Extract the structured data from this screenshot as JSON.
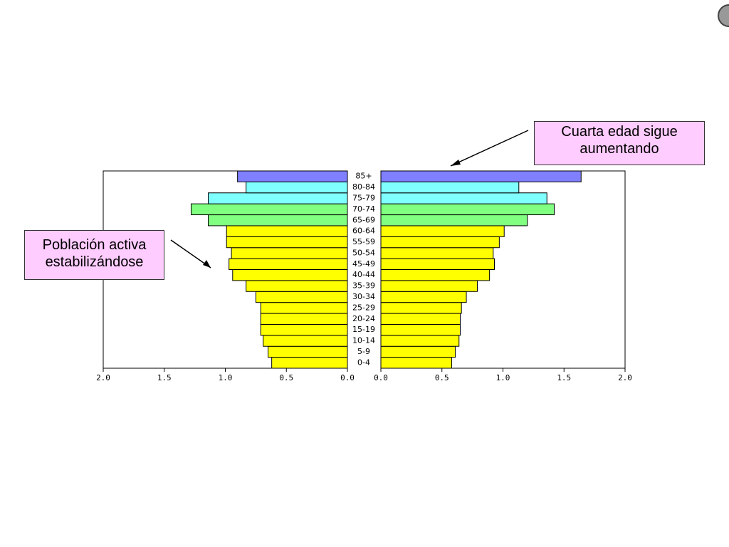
{
  "chart_data": {
    "type": "pyramid",
    "categories": [
      "0-4",
      "5-9",
      "10-14",
      "15-19",
      "20-24",
      "25-29",
      "30-34",
      "35-39",
      "40-44",
      "45-49",
      "50-54",
      "55-59",
      "60-64",
      "65-69",
      "70-74",
      "75-79",
      "80-84",
      "85+"
    ],
    "colors": [
      "#ffff00",
      "#ffff00",
      "#ffff00",
      "#ffff00",
      "#ffff00",
      "#ffff00",
      "#ffff00",
      "#ffff00",
      "#ffff00",
      "#ffff00",
      "#ffff00",
      "#ffff00",
      "#ffff00",
      "#80ff80",
      "#80ff80",
      "#80ffff",
      "#80ffff",
      "#8080ff"
    ],
    "series": [
      {
        "values": [
          0.62,
          0.65,
          0.69,
          0.71,
          0.71,
          0.71,
          0.75,
          0.83,
          0.94,
          0.97,
          0.95,
          0.99,
          0.99,
          1.14,
          1.28,
          1.14,
          0.83,
          0.9
        ],
        "xlim": [
          2.0,
          0.0
        ],
        "xticks": [
          {
            "value": 2.0,
            "label": "2.0"
          },
          {
            "value": 1.5,
            "label": "1.5"
          },
          {
            "value": 1.0,
            "label": "1.0"
          },
          {
            "value": 0.5,
            "label": "0.5"
          },
          {
            "value": 0.0,
            "label": "0.0"
          }
        ]
      },
      {
        "values": [
          0.58,
          0.61,
          0.64,
          0.65,
          0.65,
          0.66,
          0.7,
          0.79,
          0.89,
          0.93,
          0.92,
          0.97,
          1.01,
          1.2,
          1.42,
          1.36,
          1.13,
          1.64
        ],
        "xlim": [
          0.0,
          2.0
        ],
        "xticks": [
          {
            "value": 0.0,
            "label": "0.0"
          },
          {
            "value": 0.5,
            "label": "0.5"
          },
          {
            "value": 1.0,
            "label": "1.0"
          },
          {
            "value": 1.5,
            "label": "1.5"
          },
          {
            "value": 2.0,
            "label": "2.0"
          }
        ]
      }
    ],
    "annotations": [
      "Cuarta edad sigue aumentando",
      "Población activa estabilizándose"
    ]
  }
}
